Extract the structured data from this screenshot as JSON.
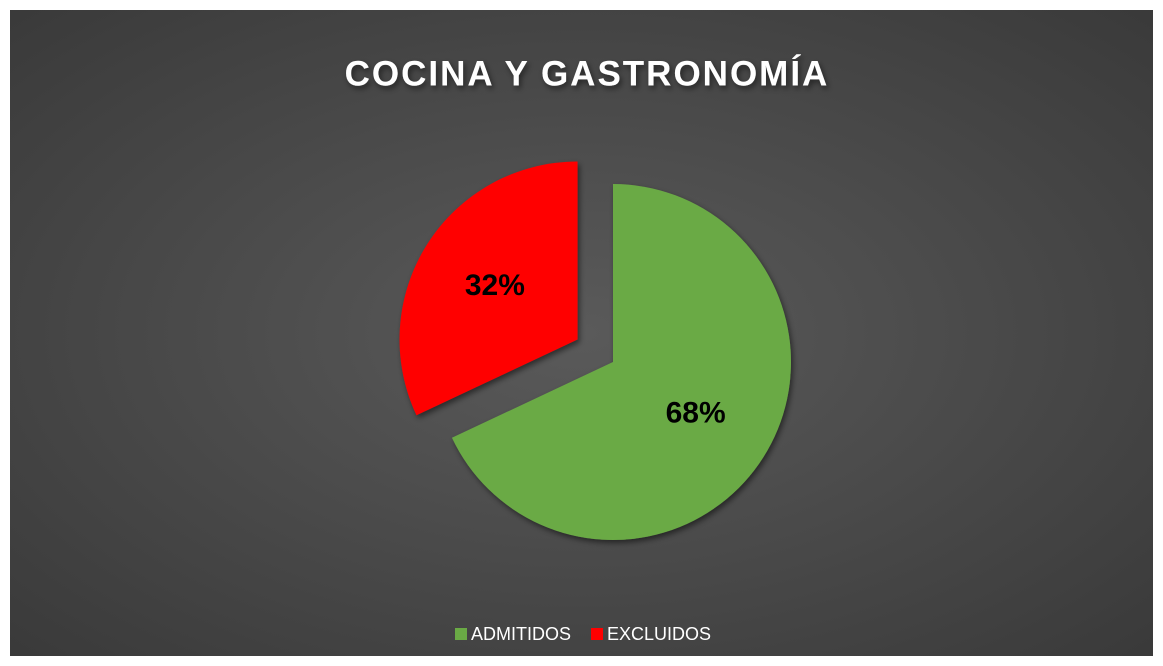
{
  "chart_data": {
    "type": "pie",
    "title": "COCINA Y GASTRONOMÍA",
    "categories": [
      "ADMITIDOS",
      "EXCLUIDOS"
    ],
    "values": [
      68,
      32
    ],
    "value_labels": [
      "68%",
      "32%"
    ],
    "colors": [
      "#6aaa45",
      "#ff0000"
    ],
    "legend": "bottom"
  }
}
